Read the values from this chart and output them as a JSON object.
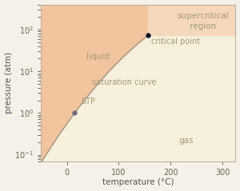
{
  "xlabel": "temperature (°C)",
  "ylabel": "pressure (atm)",
  "xlim": [
    -50,
    325
  ],
  "ylim_log": [
    0.07,
    400
  ],
  "background_color": "#f5f0e8",
  "liquid_color": "#f2c49e",
  "supercritical_color": "#f5d8bc",
  "gas_color": "#f7f0dc",
  "curve_color": "#999080",
  "critical_point": [
    157,
    73
  ],
  "stp_point": [
    15,
    1
  ],
  "critical_label": "critical point",
  "stp_label": "STP",
  "saturation_label": "saturation curve",
  "liquid_label": "liquid",
  "gas_label": "gas",
  "supercritical_label": "supercritical\nregion",
  "label_color": "#a09878",
  "text_fontsize": 7.5,
  "axis_fontsize": 7.5,
  "tick_fontsize": 7,
  "curve_T_start": -48,
  "curve_P_start": 0.07,
  "antoine_A": 6.81228,
  "antoine_B": 1301.679,
  "antoine_C": 3.494
}
